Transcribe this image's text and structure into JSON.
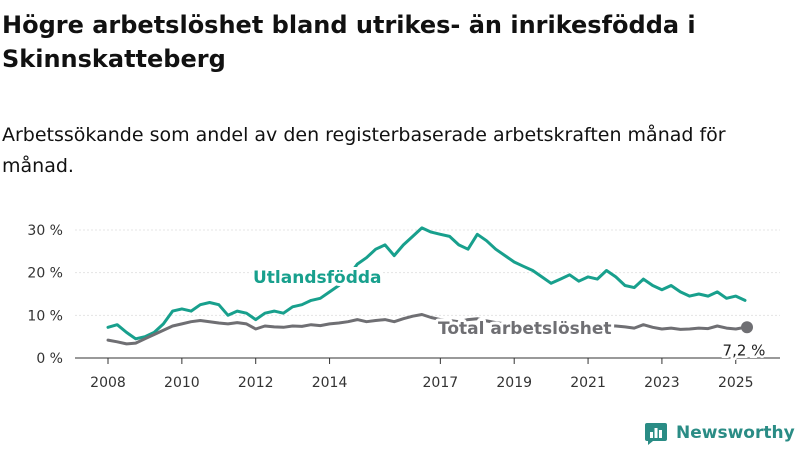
{
  "title": "Högre arbetslöshet bland utrikes- än inrikesfödda i Skinnskatteberg",
  "subtitle": "Arbetssökande som andel av den registerbaserade arbetskraften månad för månad.",
  "brand": {
    "name": "Newsworthy",
    "color": "#2a8c85",
    "icon": "bar-chart-logo-icon"
  },
  "chart_data": {
    "type": "line",
    "x_range": [
      "2008-01",
      "2025-04"
    ],
    "x_ticks": [
      "2008",
      "2010",
      "2012",
      "2014",
      "2017",
      "2019",
      "2021",
      "2023",
      "2025"
    ],
    "y_ticks": [
      "0 %",
      "10 %",
      "20 %",
      "30 %"
    ],
    "ylim": [
      0,
      32
    ],
    "grid": true,
    "series": [
      {
        "name": "Utlandsfödda",
        "color": "#18a08d",
        "points": [
          [
            "2008-01",
            7.2
          ],
          [
            "2008-04",
            7.8
          ],
          [
            "2008-07",
            6.0
          ],
          [
            "2008-10",
            4.5
          ],
          [
            "2009-01",
            5.0
          ],
          [
            "2009-04",
            6.0
          ],
          [
            "2009-07",
            8.0
          ],
          [
            "2009-10",
            11.0
          ],
          [
            "2010-01",
            11.5
          ],
          [
            "2010-04",
            11.0
          ],
          [
            "2010-07",
            12.5
          ],
          [
            "2010-10",
            13.0
          ],
          [
            "2011-01",
            12.5
          ],
          [
            "2011-04",
            10.0
          ],
          [
            "2011-07",
            11.0
          ],
          [
            "2011-10",
            10.5
          ],
          [
            "2012-01",
            9.0
          ],
          [
            "2012-04",
            10.5
          ],
          [
            "2012-07",
            11.0
          ],
          [
            "2012-10",
            10.5
          ],
          [
            "2013-01",
            12.0
          ],
          [
            "2013-04",
            12.5
          ],
          [
            "2013-07",
            13.5
          ],
          [
            "2013-10",
            14.0
          ],
          [
            "2014-01",
            15.5
          ],
          [
            "2014-04",
            17.0
          ],
          [
            "2014-07",
            19.0
          ],
          [
            "2014-10",
            22.0
          ],
          [
            "2015-01",
            23.5
          ],
          [
            "2015-04",
            25.5
          ],
          [
            "2015-07",
            26.5
          ],
          [
            "2015-10",
            24.0
          ],
          [
            "2016-01",
            26.5
          ],
          [
            "2016-04",
            28.5
          ],
          [
            "2016-07",
            30.5
          ],
          [
            "2016-10",
            29.5
          ],
          [
            "2017-01",
            29.0
          ],
          [
            "2017-04",
            28.5
          ],
          [
            "2017-07",
            26.5
          ],
          [
            "2017-10",
            25.5
          ],
          [
            "2018-01",
            29.0
          ],
          [
            "2018-04",
            27.5
          ],
          [
            "2018-07",
            25.5
          ],
          [
            "2018-10",
            24.0
          ],
          [
            "2019-01",
            22.5
          ],
          [
            "2019-04",
            21.5
          ],
          [
            "2019-07",
            20.5
          ],
          [
            "2019-10",
            19.0
          ],
          [
            "2020-01",
            17.5
          ],
          [
            "2020-04",
            18.5
          ],
          [
            "2020-07",
            19.5
          ],
          [
            "2020-10",
            18.0
          ],
          [
            "2021-01",
            19.0
          ],
          [
            "2021-04",
            18.5
          ],
          [
            "2021-07",
            20.5
          ],
          [
            "2021-10",
            19.0
          ],
          [
            "2022-01",
            17.0
          ],
          [
            "2022-04",
            16.5
          ],
          [
            "2022-07",
            18.5
          ],
          [
            "2022-10",
            17.0
          ],
          [
            "2023-01",
            16.0
          ],
          [
            "2023-04",
            17.0
          ],
          [
            "2023-07",
            15.5
          ],
          [
            "2023-10",
            14.5
          ],
          [
            "2024-01",
            15.0
          ],
          [
            "2024-04",
            14.5
          ],
          [
            "2024-07",
            15.5
          ],
          [
            "2024-10",
            14.0
          ],
          [
            "2025-01",
            14.5
          ],
          [
            "2025-04",
            13.5
          ]
        ]
      },
      {
        "name": "Total arbetslöshet",
        "color": "#6f6f73",
        "points": [
          [
            "2008-01",
            4.2
          ],
          [
            "2008-04",
            3.8
          ],
          [
            "2008-07",
            3.3
          ],
          [
            "2008-10",
            3.5
          ],
          [
            "2009-01",
            4.5
          ],
          [
            "2009-04",
            5.5
          ],
          [
            "2009-07",
            6.5
          ],
          [
            "2009-10",
            7.5
          ],
          [
            "2010-01",
            8.0
          ],
          [
            "2010-04",
            8.5
          ],
          [
            "2010-07",
            8.8
          ],
          [
            "2010-10",
            8.5
          ],
          [
            "2011-01",
            8.2
          ],
          [
            "2011-04",
            8.0
          ],
          [
            "2011-07",
            8.3
          ],
          [
            "2011-10",
            8.0
          ],
          [
            "2012-01",
            6.8
          ],
          [
            "2012-04",
            7.5
          ],
          [
            "2012-07",
            7.3
          ],
          [
            "2012-10",
            7.2
          ],
          [
            "2013-01",
            7.5
          ],
          [
            "2013-04",
            7.4
          ],
          [
            "2013-07",
            7.8
          ],
          [
            "2013-10",
            7.6
          ],
          [
            "2014-01",
            8.0
          ],
          [
            "2014-04",
            8.2
          ],
          [
            "2014-07",
            8.5
          ],
          [
            "2014-10",
            9.0
          ],
          [
            "2015-01",
            8.5
          ],
          [
            "2015-04",
            8.8
          ],
          [
            "2015-07",
            9.0
          ],
          [
            "2015-10",
            8.5
          ],
          [
            "2016-01",
            9.2
          ],
          [
            "2016-04",
            9.8
          ],
          [
            "2016-07",
            10.2
          ],
          [
            "2016-10",
            9.5
          ],
          [
            "2017-01",
            9.0
          ],
          [
            "2017-04",
            8.8
          ],
          [
            "2017-07",
            8.5
          ],
          [
            "2017-10",
            9.0
          ],
          [
            "2018-01",
            9.2
          ],
          [
            "2018-04",
            8.7
          ],
          [
            "2018-07",
            8.3
          ],
          [
            "2018-10",
            8.0
          ],
          [
            "2019-01",
            7.8
          ],
          [
            "2019-04",
            7.6
          ],
          [
            "2019-07",
            7.5
          ],
          [
            "2019-10",
            7.2
          ],
          [
            "2020-01",
            7.0
          ],
          [
            "2020-04",
            7.5
          ],
          [
            "2020-07",
            7.8
          ],
          [
            "2020-10",
            7.6
          ],
          [
            "2021-01",
            7.5
          ],
          [
            "2021-04",
            7.4
          ],
          [
            "2021-07",
            7.6
          ],
          [
            "2021-10",
            7.5
          ],
          [
            "2022-01",
            7.3
          ],
          [
            "2022-04",
            7.0
          ],
          [
            "2022-07",
            7.8
          ],
          [
            "2022-10",
            7.2
          ],
          [
            "2023-01",
            6.8
          ],
          [
            "2023-04",
            7.0
          ],
          [
            "2023-07",
            6.7
          ],
          [
            "2023-10",
            6.8
          ],
          [
            "2024-01",
            7.0
          ],
          [
            "2024-04",
            6.9
          ],
          [
            "2024-07",
            7.5
          ],
          [
            "2024-10",
            7.0
          ],
          [
            "2025-01",
            6.8
          ],
          [
            "2025-04",
            7.2
          ]
        ]
      }
    ],
    "end_value_label": "7,2 %"
  }
}
